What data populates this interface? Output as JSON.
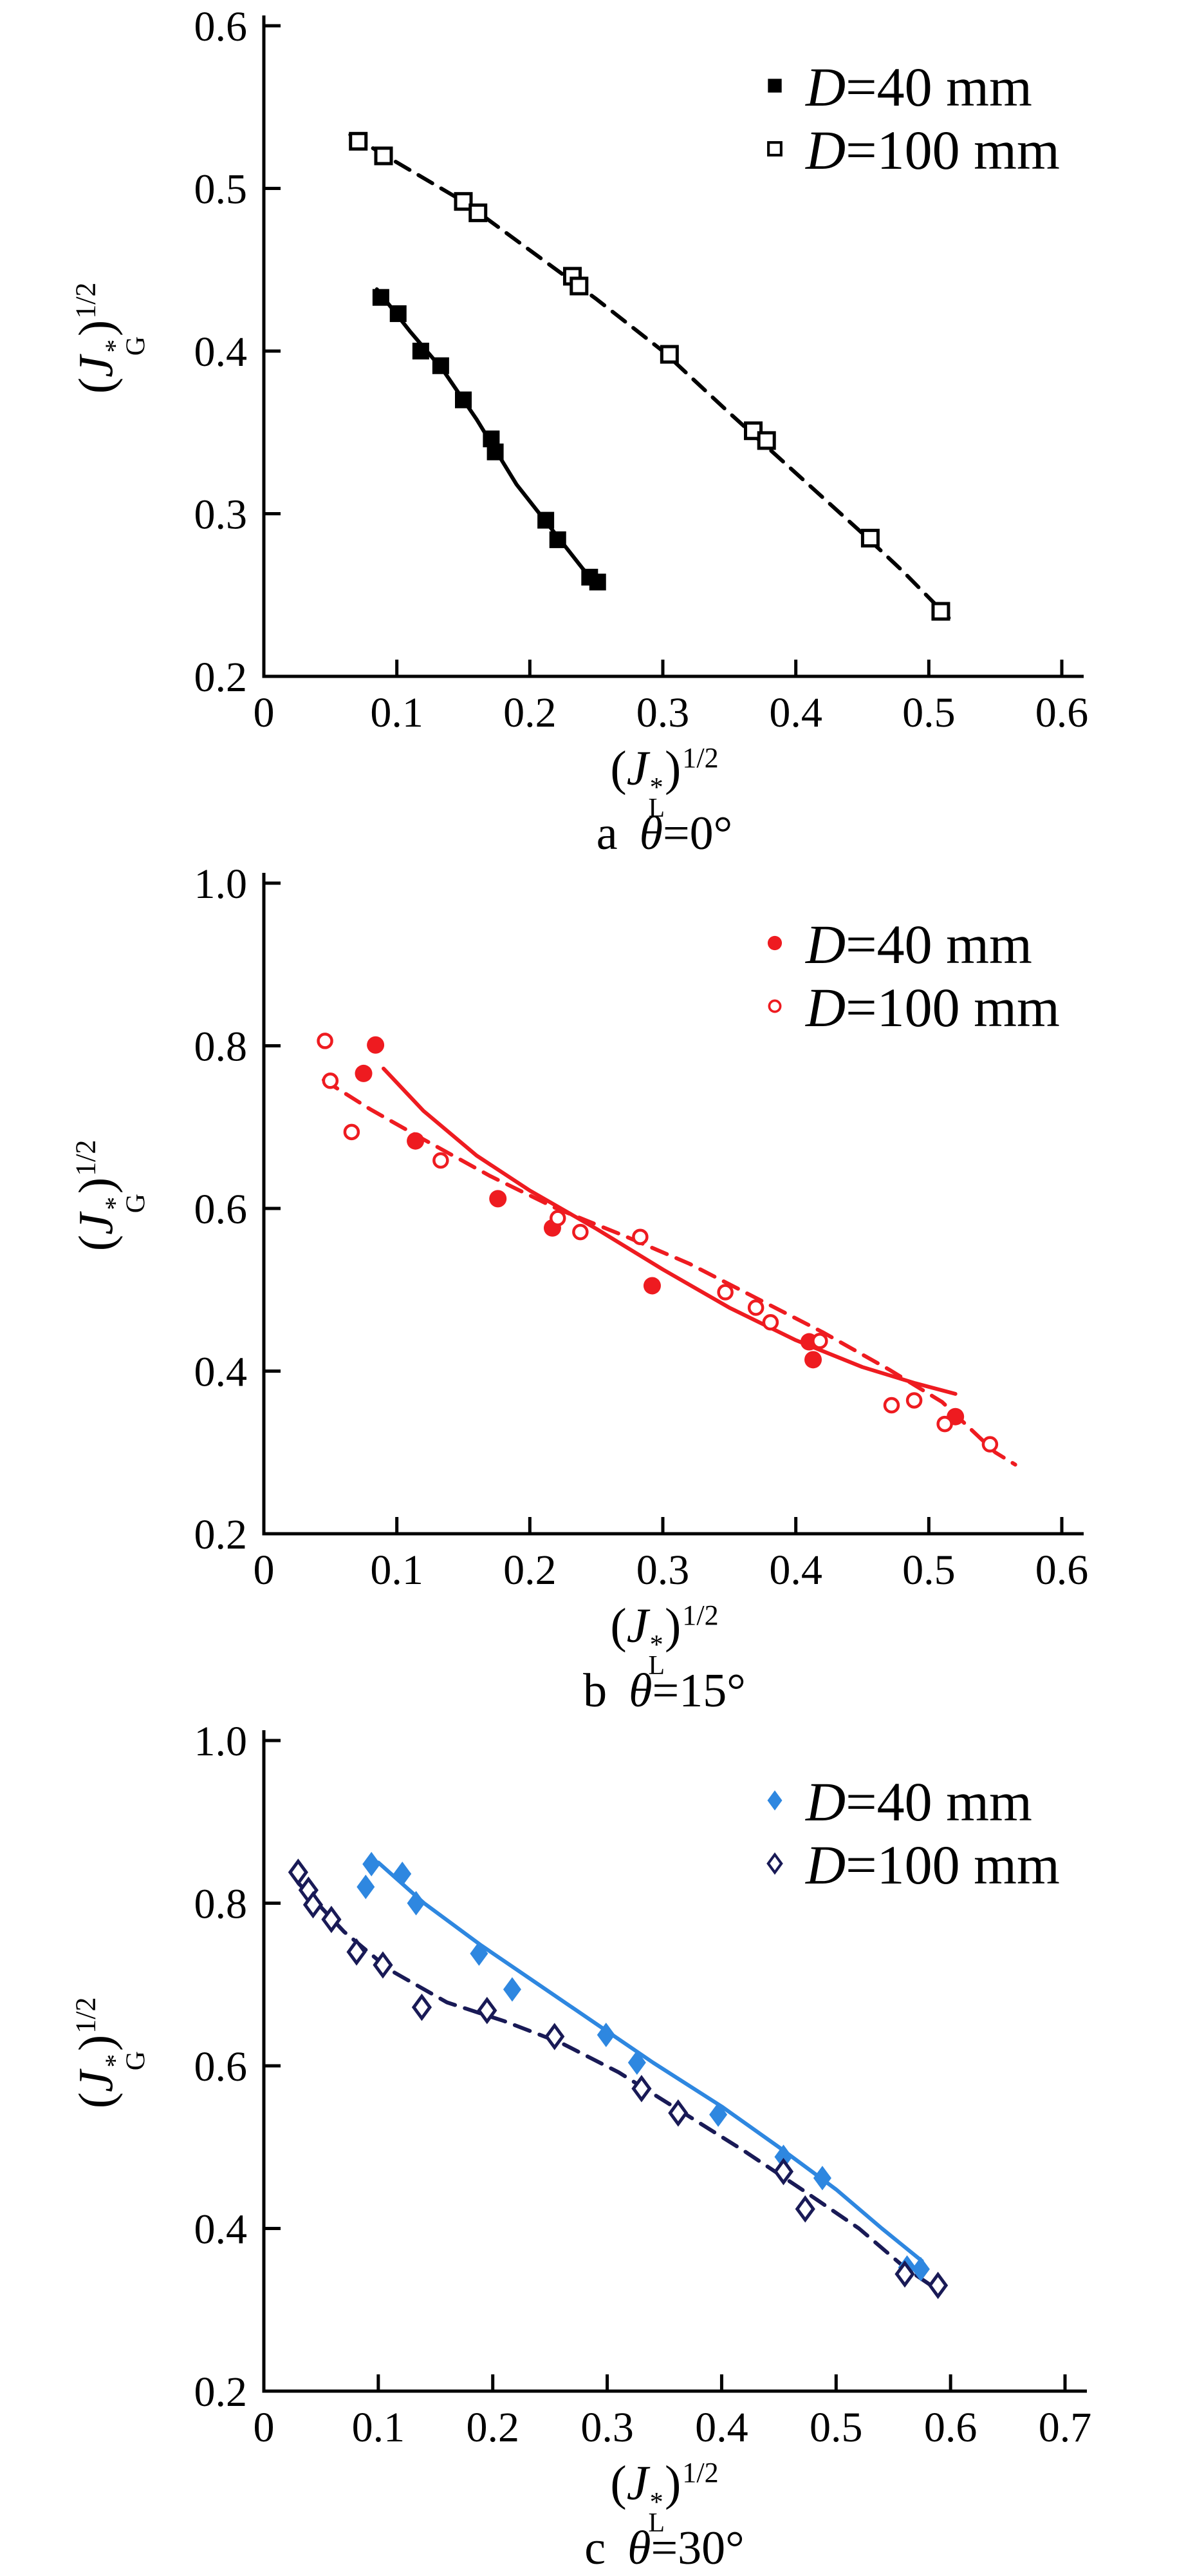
{
  "figure": {
    "background": "#ffffff",
    "text_color": "#000000"
  },
  "chart_data": [
    {
      "id": "a",
      "type": "scatter",
      "caption": {
        "prefix": "a",
        "theta": "θ",
        "suffix": "=0°"
      },
      "xlabel_text": "(J*L)^1/2",
      "ylabel_text": "(J*G)^1/2",
      "xlabel_parts": {
        "open": "(",
        "sym": "J",
        "sup": "*",
        "sub": "L",
        "close": ")",
        "exp": "1/2"
      },
      "ylabel_parts": {
        "open": "(",
        "sym": "J",
        "sup": "*",
        "sub": "G",
        "close": ")",
        "exp": "1/2"
      },
      "x_axis": {
        "min": 0,
        "max": 0.6,
        "ticks": [
          0,
          0.1,
          0.2,
          0.3,
          0.4,
          0.5,
          0.6
        ],
        "tick_labels": [
          "0",
          "0.1",
          "0.2",
          "0.3",
          "0.4",
          "0.5",
          "0.6"
        ]
      },
      "y_axis": {
        "min": 0.2,
        "max": 0.6,
        "ticks": [
          0.2,
          0.3,
          0.4,
          0.5,
          0.6
        ],
        "tick_labels": [
          "0.2",
          "0.3",
          "0.4",
          "0.5",
          "0.6"
        ]
      },
      "grid": false,
      "legend_position": "upper-right-inside",
      "legend": [
        {
          "marker": "filled-square",
          "color": "#000000",
          "label_d": "D",
          "label_rest": "=40 mm"
        },
        {
          "marker": "open-square",
          "color": "#000000",
          "label_d": "D",
          "label_rest": "=100 mm"
        }
      ],
      "series": [
        {
          "name": "D=40 mm",
          "marker": "filled-square",
          "line": "solid",
          "color": "#000000",
          "points": [
            [
              0.088,
              0.433
            ],
            [
              0.101,
              0.423
            ],
            [
              0.118,
              0.4
            ],
            [
              0.133,
              0.391
            ],
            [
              0.15,
              0.37
            ],
            [
              0.171,
              0.346
            ],
            [
              0.174,
              0.338
            ],
            [
              0.212,
              0.296
            ],
            [
              0.221,
              0.284
            ],
            [
              0.245,
              0.261
            ],
            [
              0.251,
              0.258
            ]
          ],
          "fit": [
            [
              0.085,
              0.438
            ],
            [
              0.11,
              0.412
            ],
            [
              0.135,
              0.388
            ],
            [
              0.16,
              0.358
            ],
            [
              0.19,
              0.318
            ],
            [
              0.215,
              0.292
            ],
            [
              0.24,
              0.266
            ],
            [
              0.253,
              0.255
            ]
          ]
        },
        {
          "name": "D=100 mm",
          "marker": "open-square",
          "line": "dashed",
          "color": "#000000",
          "points": [
            [
              0.071,
              0.529
            ],
            [
              0.09,
              0.52
            ],
            [
              0.15,
              0.492
            ],
            [
              0.161,
              0.485
            ],
            [
              0.232,
              0.446
            ],
            [
              0.237,
              0.44
            ],
            [
              0.305,
              0.398
            ],
            [
              0.368,
              0.351
            ],
            [
              0.378,
              0.345
            ],
            [
              0.456,
              0.285
            ],
            [
              0.509,
              0.24
            ]
          ],
          "fit": [
            [
              0.065,
              0.533
            ],
            [
              0.1,
              0.516
            ],
            [
              0.15,
              0.492
            ],
            [
              0.2,
              0.462
            ],
            [
              0.25,
              0.432
            ],
            [
              0.3,
              0.4
            ],
            [
              0.35,
              0.362
            ],
            [
              0.4,
              0.325
            ],
            [
              0.45,
              0.288
            ],
            [
              0.48,
              0.265
            ],
            [
              0.515,
              0.236
            ]
          ]
        }
      ]
    },
    {
      "id": "b",
      "type": "scatter",
      "caption": {
        "prefix": "b",
        "theta": "θ",
        "suffix": "=15°"
      },
      "xlabel_text": "(J*L)^1/2",
      "ylabel_text": "(J*G)^1/2",
      "xlabel_parts": {
        "open": "(",
        "sym": "J",
        "sup": "*",
        "sub": "L",
        "close": ")",
        "exp": "1/2"
      },
      "ylabel_parts": {
        "open": "(",
        "sym": "J",
        "sup": "*",
        "sub": "G",
        "close": ")",
        "exp": "1/2"
      },
      "x_axis": {
        "min": 0,
        "max": 0.6,
        "ticks": [
          0,
          0.1,
          0.2,
          0.3,
          0.4,
          0.5,
          0.6
        ],
        "tick_labels": [
          "0",
          "0.1",
          "0.2",
          "0.3",
          "0.4",
          "0.5",
          "0.6"
        ]
      },
      "y_axis": {
        "min": 0.2,
        "max": 1.0,
        "ticks": [
          0.2,
          0.4,
          0.6,
          0.8,
          1.0
        ],
        "tick_labels": [
          "0.2",
          "0.4",
          "0.6",
          "0.8",
          "1.0"
        ]
      },
      "grid": false,
      "legend_position": "upper-right-inside",
      "legend": [
        {
          "marker": "filled-circle",
          "color": "#ee1b20",
          "label_d": "D",
          "label_rest": "=40 mm"
        },
        {
          "marker": "open-circle",
          "color": "#ee1b20",
          "label_d": "D",
          "label_rest": "=100 mm"
        }
      ],
      "series": [
        {
          "name": "D=40 mm",
          "marker": "filled-circle",
          "line": "solid",
          "color": "#ee1b20",
          "points": [
            [
              0.084,
              0.801
            ],
            [
              0.075,
              0.766
            ],
            [
              0.114,
              0.683
            ],
            [
              0.176,
              0.612
            ],
            [
              0.217,
              0.576
            ],
            [
              0.292,
              0.505
            ],
            [
              0.41,
              0.436
            ],
            [
              0.413,
              0.414
            ],
            [
              0.52,
              0.344
            ]
          ],
          "fit": [
            [
              0.09,
              0.772
            ],
            [
              0.12,
              0.72
            ],
            [
              0.16,
              0.665
            ],
            [
              0.2,
              0.622
            ],
            [
              0.25,
              0.575
            ],
            [
              0.3,
              0.525
            ],
            [
              0.35,
              0.478
            ],
            [
              0.4,
              0.438
            ],
            [
              0.45,
              0.405
            ],
            [
              0.49,
              0.385
            ],
            [
              0.52,
              0.372
            ]
          ]
        },
        {
          "name": "D=100 mm",
          "marker": "open-circle",
          "line": "dashed",
          "color": "#ee1b20",
          "points": [
            [
              0.046,
              0.806
            ],
            [
              0.05,
              0.757
            ],
            [
              0.066,
              0.694
            ],
            [
              0.133,
              0.659
            ],
            [
              0.221,
              0.588
            ],
            [
              0.238,
              0.571
            ],
            [
              0.283,
              0.565
            ],
            [
              0.347,
              0.497
            ],
            [
              0.37,
              0.478
            ],
            [
              0.381,
              0.46
            ],
            [
              0.418,
              0.437
            ],
            [
              0.472,
              0.358
            ],
            [
              0.489,
              0.364
            ],
            [
              0.512,
              0.335
            ],
            [
              0.546,
              0.31
            ]
          ],
          "fit": [
            [
              0.045,
              0.758
            ],
            [
              0.08,
              0.722
            ],
            [
              0.12,
              0.685
            ],
            [
              0.17,
              0.64
            ],
            [
              0.22,
              0.6
            ],
            [
              0.27,
              0.567
            ],
            [
              0.32,
              0.532
            ],
            [
              0.37,
              0.49
            ],
            [
              0.42,
              0.448
            ],
            [
              0.47,
              0.402
            ],
            [
              0.51,
              0.362
            ],
            [
              0.55,
              0.3
            ],
            [
              0.565,
              0.285
            ]
          ]
        }
      ]
    },
    {
      "id": "c",
      "type": "scatter",
      "caption": {
        "prefix": "c",
        "theta": "θ",
        "suffix": "=30°"
      },
      "xlabel_text": "(J*L)^1/2",
      "ylabel_text": "(J*G)^1/2",
      "xlabel_parts": {
        "open": "(",
        "sym": "J",
        "sup": "*",
        "sub": "L",
        "close": ")",
        "exp": "1/2"
      },
      "ylabel_parts": {
        "open": "(",
        "sym": "J",
        "sup": "*",
        "sub": "G",
        "close": ")",
        "exp": "1/2"
      },
      "x_axis": {
        "min": 0,
        "max": 0.7,
        "ticks": [
          0,
          0.1,
          0.2,
          0.3,
          0.4,
          0.5,
          0.6,
          0.7
        ],
        "tick_labels": [
          "0",
          "0.1",
          "0.2",
          "0.3",
          "0.4",
          "0.5",
          "0.6",
          "0.7"
        ]
      },
      "y_axis": {
        "min": 0.2,
        "max": 1.0,
        "ticks": [
          0.2,
          0.4,
          0.6,
          0.8,
          1.0
        ],
        "tick_labels": [
          "0.2",
          "0.4",
          "0.6",
          "0.8",
          "1.0"
        ]
      },
      "grid": false,
      "legend_position": "upper-right-inside",
      "legend": [
        {
          "marker": "filled-diamond",
          "color": "#2e87e0",
          "label_d": "D",
          "label_rest": "=40 mm"
        },
        {
          "marker": "open-diamond",
          "color": "#191a56",
          "label_d": "D",
          "label_rest": "=100 mm"
        }
      ],
      "series": [
        {
          "name": "D=40 mm",
          "marker": "filled-diamond",
          "line": "solid",
          "color": "#2e87e0",
          "points": [
            [
              0.094,
              0.848
            ],
            [
              0.089,
              0.82
            ],
            [
              0.121,
              0.836
            ],
            [
              0.133,
              0.8
            ],
            [
              0.188,
              0.738
            ],
            [
              0.217,
              0.694
            ],
            [
              0.299,
              0.638
            ],
            [
              0.326,
              0.604
            ],
            [
              0.397,
              0.54
            ],
            [
              0.454,
              0.488
            ],
            [
              0.488,
              0.462
            ],
            [
              0.562,
              0.352
            ],
            [
              0.574,
              0.35
            ]
          ],
          "fit": [
            [
              0.1,
              0.85
            ],
            [
              0.14,
              0.8
            ],
            [
              0.19,
              0.748
            ],
            [
              0.24,
              0.7
            ],
            [
              0.29,
              0.652
            ],
            [
              0.34,
              0.604
            ],
            [
              0.4,
              0.55
            ],
            [
              0.45,
              0.5
            ],
            [
              0.5,
              0.448
            ],
            [
              0.54,
              0.4
            ],
            [
              0.575,
              0.36
            ]
          ]
        },
        {
          "name": "D=100 mm",
          "marker": "open-diamond",
          "line": "dashed",
          "color": "#191a56",
          "points": [
            [
              0.03,
              0.838
            ],
            [
              0.039,
              0.816
            ],
            [
              0.043,
              0.798
            ],
            [
              0.059,
              0.78
            ],
            [
              0.081,
              0.74
            ],
            [
              0.104,
              0.724
            ],
            [
              0.138,
              0.672
            ],
            [
              0.195,
              0.668
            ],
            [
              0.254,
              0.636
            ],
            [
              0.33,
              0.572
            ],
            [
              0.362,
              0.542
            ],
            [
              0.454,
              0.47
            ],
            [
              0.473,
              0.424
            ],
            [
              0.56,
              0.344
            ],
            [
              0.589,
              0.33
            ]
          ],
          "fit": [
            [
              0.03,
              0.825
            ],
            [
              0.07,
              0.765
            ],
            [
              0.11,
              0.718
            ],
            [
              0.16,
              0.678
            ],
            [
              0.21,
              0.655
            ],
            [
              0.26,
              0.628
            ],
            [
              0.31,
              0.592
            ],
            [
              0.36,
              0.548
            ],
            [
              0.42,
              0.495
            ],
            [
              0.47,
              0.448
            ],
            [
              0.52,
              0.4
            ],
            [
              0.56,
              0.352
            ],
            [
              0.585,
              0.328
            ]
          ]
        }
      ]
    }
  ]
}
